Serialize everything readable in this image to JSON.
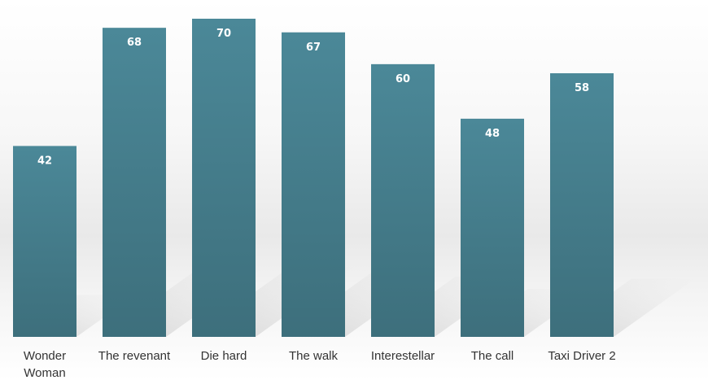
{
  "chart_data": {
    "type": "bar",
    "categories": [
      "Wonder Woman",
      "The revenant",
      "Die hard",
      "The walk",
      "Interestellar",
      "The call",
      "Taxi Driver 2"
    ],
    "category_lines": [
      [
        "Wonder",
        "Woman"
      ],
      [
        "The revenant"
      ],
      [
        "Die hard"
      ],
      [
        "The walk"
      ],
      [
        "Interestellar"
      ],
      [
        "The call"
      ],
      [
        "Taxi Driver 2"
      ]
    ],
    "values": [
      42,
      68,
      70,
      67,
      60,
      48,
      58
    ],
    "value_labels": [
      "42",
      "68",
      "70",
      "67",
      "60",
      "48",
      "58"
    ],
    "ylim": [
      0,
      70
    ],
    "grid": false,
    "legend": "none",
    "bar_color_top": "#4b8898",
    "bar_color_bottom": "#3d6f7c"
  }
}
